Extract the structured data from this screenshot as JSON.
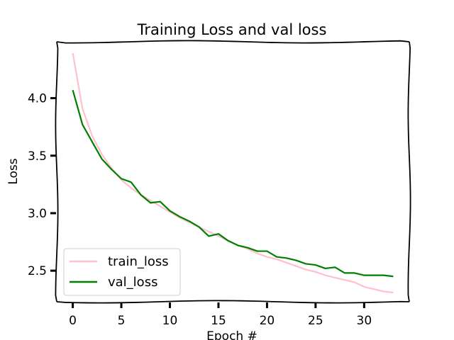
{
  "chart_data": {
    "type": "line",
    "title": "Training Loss and val loss",
    "xlabel": "Epoch #",
    "ylabel": "Loss",
    "xlim": [
      -1.65,
      34.65
    ],
    "ylim": [
      2.23,
      4.49
    ],
    "xticks": [
      0,
      5,
      10,
      15,
      20,
      25,
      30
    ],
    "yticks": [
      2.5,
      3.0,
      3.5,
      4.0
    ],
    "ytick_labels": [
      "2.5",
      "3.0",
      "3.5",
      "4.0"
    ],
    "grid": false,
    "legend_position": "lower-left",
    "x": [
      0,
      1,
      2,
      3,
      4,
      5,
      6,
      7,
      8,
      9,
      10,
      11,
      12,
      13,
      14,
      15,
      16,
      17,
      18,
      19,
      20,
      21,
      22,
      23,
      24,
      25,
      26,
      27,
      28,
      29,
      30,
      31,
      32,
      33
    ],
    "series": [
      {
        "name": "train_loss",
        "color": "#ffc0cb",
        "values": [
          4.39,
          3.91,
          3.67,
          3.51,
          3.39,
          3.29,
          3.22,
          3.16,
          3.11,
          3.06,
          3.01,
          2.96,
          2.92,
          2.88,
          2.84,
          2.8,
          2.76,
          2.72,
          2.69,
          2.65,
          2.62,
          2.6,
          2.57,
          2.54,
          2.51,
          2.49,
          2.46,
          2.44,
          2.42,
          2.4,
          2.36,
          2.34,
          2.32,
          2.31
        ]
      },
      {
        "name": "val_loss",
        "color": "#008000",
        "values": [
          4.07,
          3.77,
          3.62,
          3.47,
          3.38,
          3.3,
          3.27,
          3.16,
          3.09,
          3.1,
          3.02,
          2.97,
          2.93,
          2.88,
          2.8,
          2.82,
          2.76,
          2.72,
          2.7,
          2.67,
          2.67,
          2.62,
          2.61,
          2.59,
          2.56,
          2.55,
          2.52,
          2.53,
          2.48,
          2.48,
          2.46,
          2.46,
          2.46,
          2.45
        ]
      }
    ]
  }
}
